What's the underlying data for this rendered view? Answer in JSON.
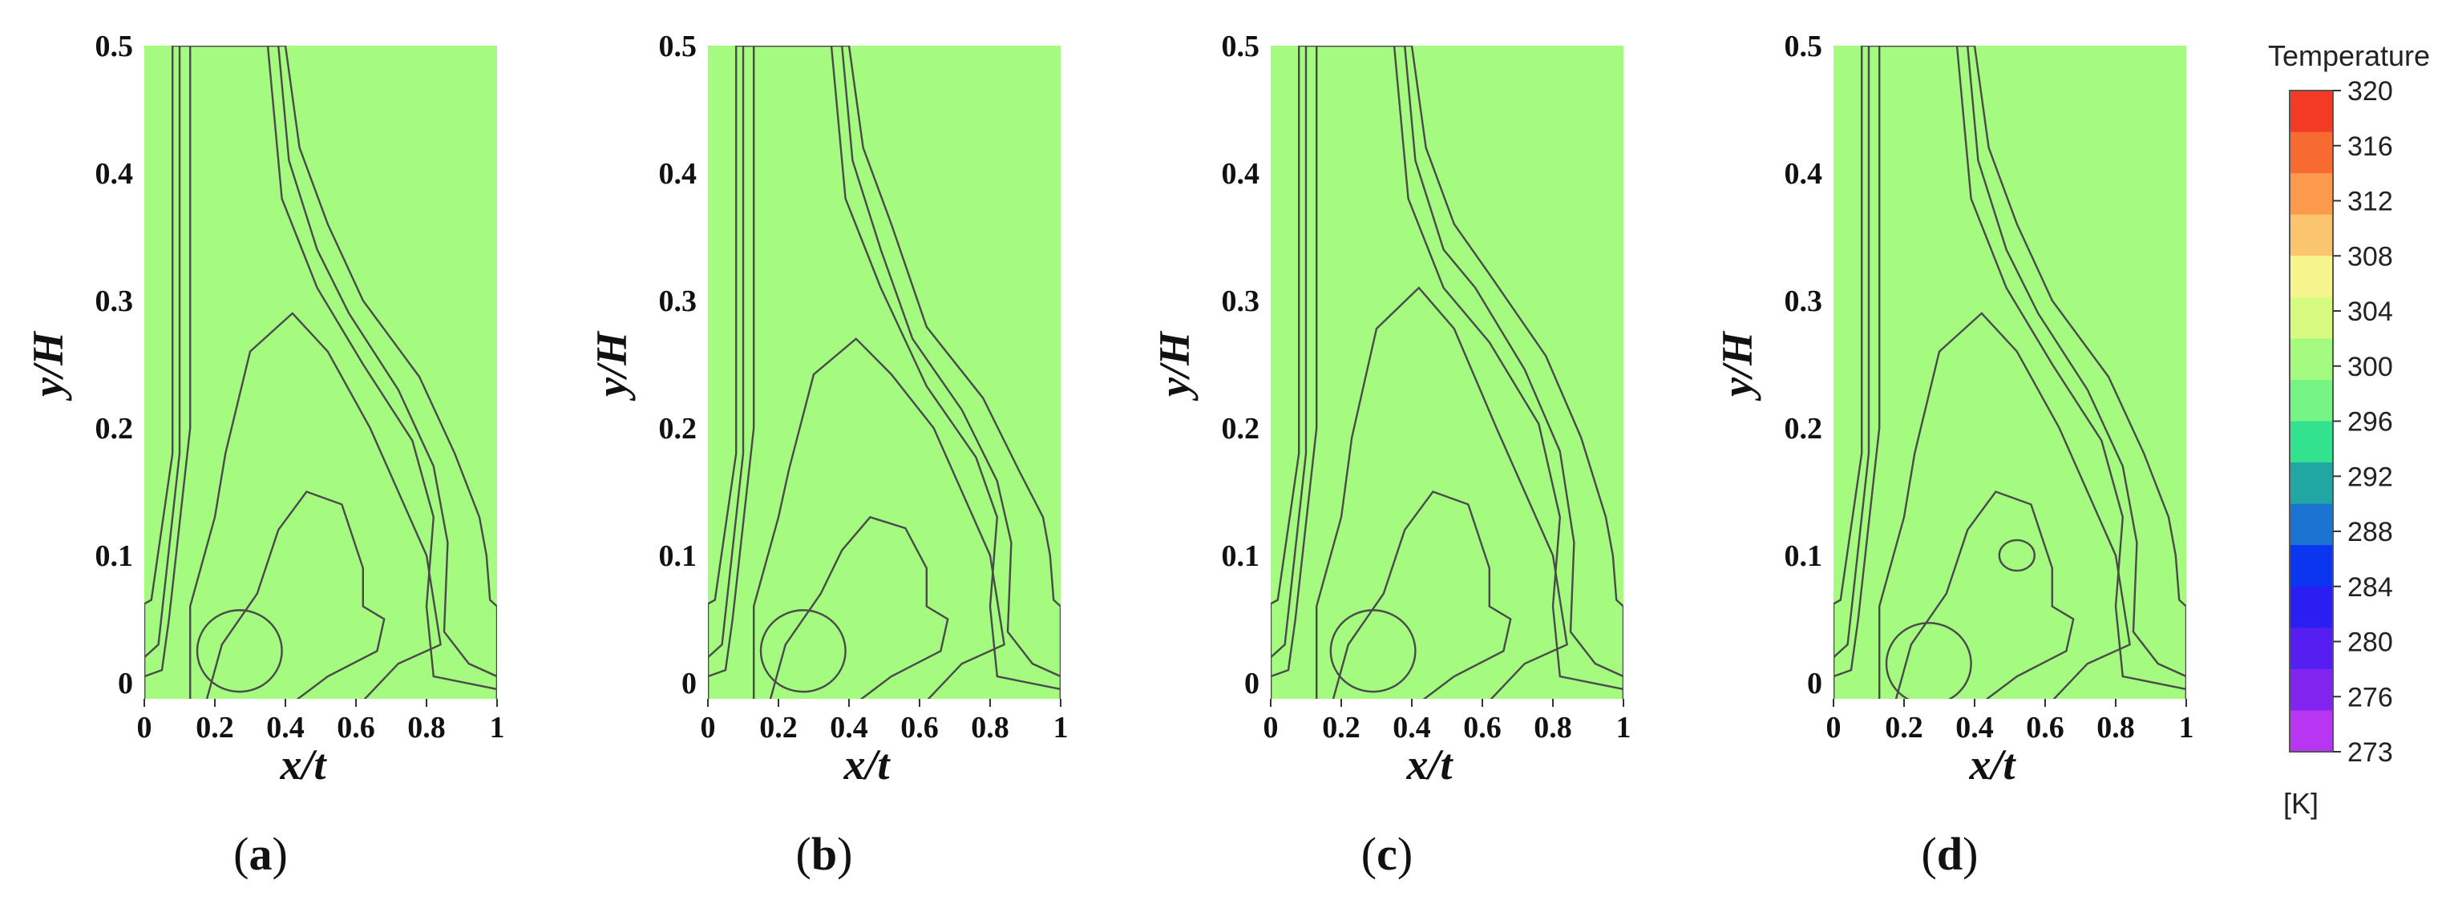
{
  "chart_data": {
    "type": "contour",
    "x_label": "x/t",
    "y_label": "y/H",
    "x_ticks": [
      "0",
      "0.2",
      "0.4",
      "0.6",
      "0.8",
      "1"
    ],
    "y_ticks": [
      "0",
      "0.1",
      "0.2",
      "0.3",
      "0.4",
      "0.5"
    ],
    "xlim": [
      0,
      1
    ],
    "ylim": [
      0,
      0.5
    ],
    "panels": [
      {
        "label": "a",
        "hot_core_x": 0.27,
        "hot_core_y": 0.02,
        "plume_peak_y_312": 0.29,
        "plume_peak_y_316": 0.15,
        "core_318": [
          [
            0.27,
            0.02
          ]
        ]
      },
      {
        "label": "b",
        "hot_core_x": 0.27,
        "hot_core_y": 0.02,
        "plume_peak_y_312": 0.27,
        "plume_peak_y_316": 0.13,
        "core_318": [
          [
            0.27,
            0.02
          ]
        ]
      },
      {
        "label": "c",
        "hot_core_x": 0.29,
        "hot_core_y": 0.02,
        "plume_peak_y_312": 0.31,
        "plume_peak_y_316": 0.15,
        "core_318": [
          [
            0.29,
            0.02
          ]
        ]
      },
      {
        "label": "d",
        "hot_core_x": 0.27,
        "hot_core_y": 0.01,
        "plume_peak_y_312": 0.29,
        "plume_peak_y_316": 0.15,
        "core_318": [
          [
            0.27,
            0.01
          ],
          [
            0.52,
            0.1
          ]
        ]
      }
    ],
    "colorbar": {
      "title": "Temperature",
      "unit": "[K]",
      "ticks": [
        "320",
        "316",
        "312",
        "308",
        "304",
        "300",
        "296",
        "292",
        "288",
        "284",
        "280",
        "276",
        "273"
      ],
      "colors": [
        "#f23a25",
        "#f76a32",
        "#fb9a4c",
        "#fbc46f",
        "#f6f48c",
        "#d6fb80",
        "#a4fb80",
        "#76f484",
        "#33e28e",
        "#21a7a3",
        "#1d73d2",
        "#0b35ee",
        "#2b1ef2",
        "#551ff1",
        "#8224f0",
        "#b735f3"
      ]
    }
  },
  "captions": {
    "a": {
      "open": "(",
      "letter": "a",
      "close": ")"
    },
    "b": {
      "open": "(",
      "letter": "b",
      "close": ")"
    },
    "c": {
      "open": "(",
      "letter": "c",
      "close": ")"
    },
    "d": {
      "open": "(",
      "letter": "d",
      "close": ")"
    }
  }
}
